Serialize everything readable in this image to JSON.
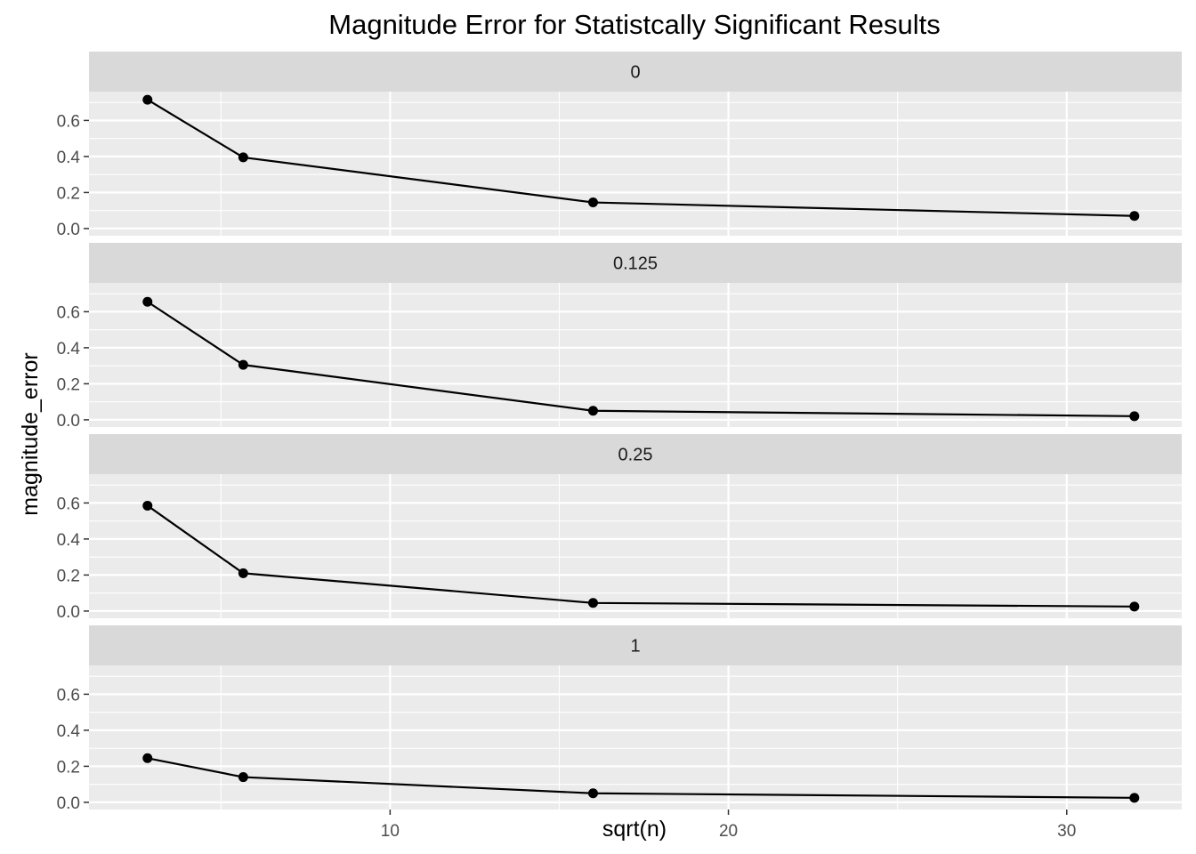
{
  "chart_data": {
    "type": "line",
    "title": "Magnitude Error for Statistcally Significant Results",
    "xlabel": "sqrt(n)",
    "ylabel": "magnitude_error",
    "x_ticks": [
      10,
      20,
      30
    ],
    "y_ticks": [
      0.0,
      0.2,
      0.4,
      0.6
    ],
    "y_tick_labels": [
      "0.0",
      "0.2",
      "0.4",
      "0.6"
    ],
    "xlim": [
      1.1,
      33.4
    ],
    "ylim": [
      -0.04,
      0.76
    ],
    "grid": true,
    "facet_layout": "rows",
    "colors": {
      "panel_background": "#ebebeb",
      "strip_background": "#d9d9d9",
      "grid": "#ffffff",
      "line": "#000000"
    },
    "panels": [
      {
        "label": "0",
        "x": [
          2.83,
          5.66,
          16,
          32
        ],
        "y": [
          0.715,
          0.395,
          0.145,
          0.07
        ]
      },
      {
        "label": "0.125",
        "x": [
          2.83,
          5.66,
          16,
          32
        ],
        "y": [
          0.655,
          0.305,
          0.05,
          0.02
        ]
      },
      {
        "label": "0.25",
        "x": [
          2.83,
          5.66,
          16,
          32
        ],
        "y": [
          0.585,
          0.21,
          0.045,
          0.025
        ]
      },
      {
        "label": "1",
        "x": [
          2.83,
          5.66,
          16,
          32
        ],
        "y": [
          0.245,
          0.14,
          0.05,
          0.025
        ]
      }
    ]
  }
}
